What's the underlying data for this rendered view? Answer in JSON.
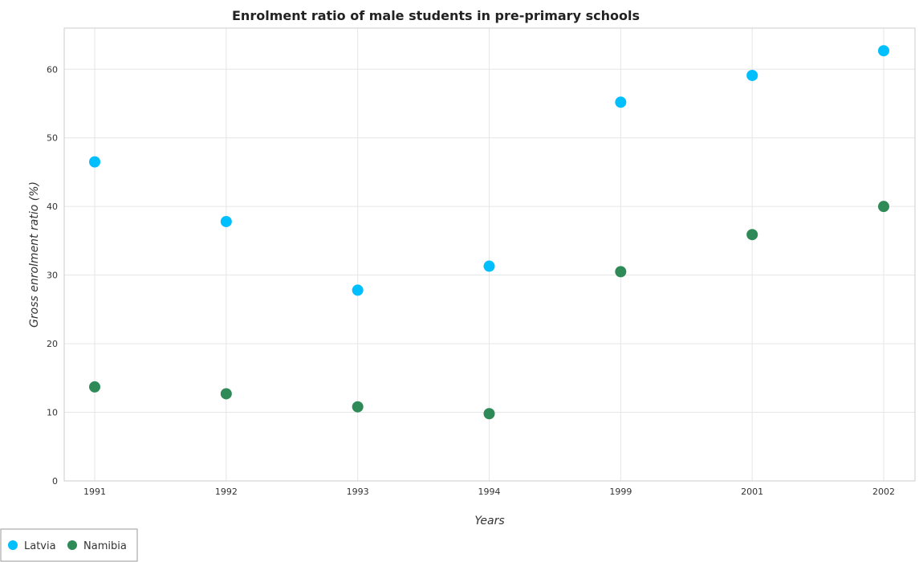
{
  "chart_data": {
    "type": "scatter",
    "title": "Enrolment ratio of male students in pre-primary schools",
    "xlabel": "Years",
    "ylabel": "Gross enrolment ratio (%)",
    "categories": [
      "1991",
      "1992",
      "1993",
      "1994",
      "1999",
      "2001",
      "2002"
    ],
    "ylim": [
      0,
      66
    ],
    "yticks": [
      0,
      10,
      20,
      30,
      40,
      50,
      60
    ],
    "grid": true,
    "legend_position": "bottom-left",
    "series": [
      {
        "name": "Latvia",
        "color": "#00bfff",
        "values": [
          46.5,
          37.8,
          27.8,
          31.3,
          55.2,
          59.1,
          62.7
        ]
      },
      {
        "name": "Namibia",
        "color": "#2e8b57",
        "values": [
          13.7,
          12.7,
          10.8,
          9.8,
          30.5,
          35.9,
          40.0
        ]
      }
    ]
  }
}
